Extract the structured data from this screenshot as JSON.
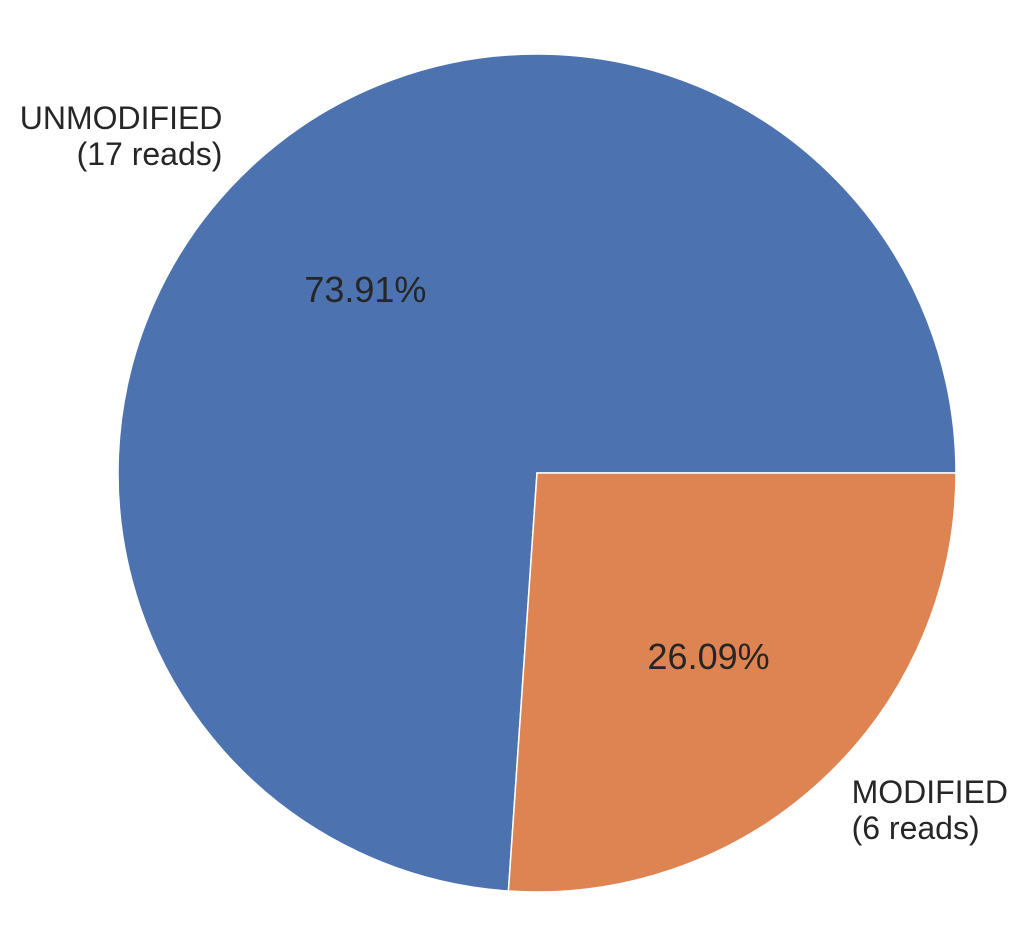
{
  "chart_data": {
    "type": "pie",
    "title": "",
    "start_angle_deg": 0,
    "direction": "counterclockwise",
    "slices": [
      {
        "name": "UNMODIFIED",
        "value": 17,
        "label_lines": [
          "UNMODIFIED",
          "(17 reads)"
        ],
        "percent_label": "73.91%",
        "color": "#4c72b0"
      },
      {
        "name": "MODIFIED",
        "value": 6,
        "label_lines": [
          "MODIFIED",
          "(6 reads)"
        ],
        "percent_label": "26.09%",
        "color": "#dd8452"
      }
    ]
  }
}
